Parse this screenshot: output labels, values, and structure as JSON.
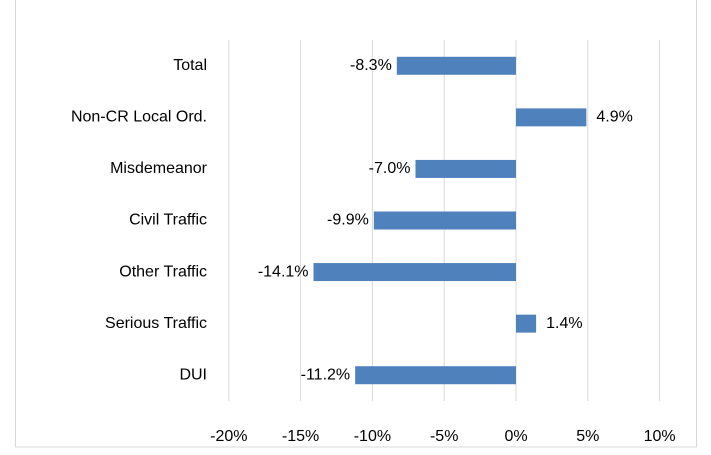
{
  "chart_data": {
    "type": "barh",
    "categories": [
      "Total",
      "Non-CR Local Ord.",
      "Misdemeanor",
      "Civil Traffic",
      "Other Traffic",
      "Serious Traffic",
      "DUI"
    ],
    "values": [
      -8.3,
      4.9,
      -7.0,
      -9.9,
      -14.1,
      1.4,
      -11.2
    ],
    "value_labels": [
      "-8.3%",
      "4.9%",
      "-7.0%",
      "-9.9%",
      "-14.1%",
      "1.4%",
      "-11.2%"
    ],
    "color": "#4f81bd",
    "xlim": [
      -20,
      10
    ],
    "xticks": [
      {
        "value": -20,
        "label": "-20%"
      },
      {
        "value": -15,
        "label": "-15%"
      },
      {
        "value": -10,
        "label": "-10%"
      },
      {
        "value": -5,
        "label": "-5%"
      },
      {
        "value": 0,
        "label": "0%"
      },
      {
        "value": 5,
        "label": "5%"
      },
      {
        "value": 10,
        "label": "10%"
      }
    ],
    "grid": true
  }
}
